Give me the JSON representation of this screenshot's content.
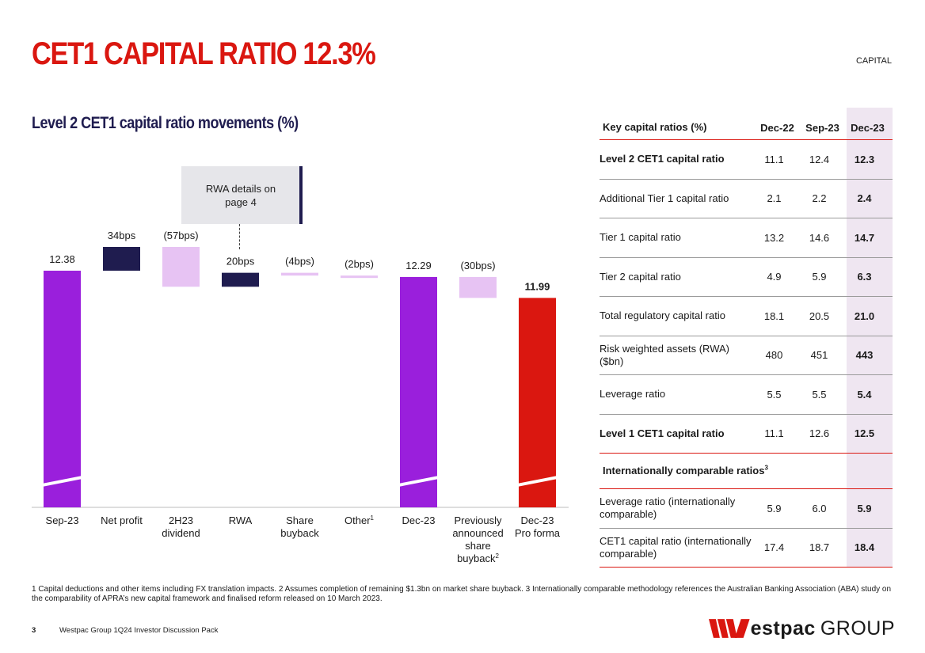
{
  "header": {
    "title": "CET1 CAPITAL RATIO 12.3%",
    "section": "CAPITAL"
  },
  "chart_section": {
    "subtitle": "Level 2 CET1 capital ratio movements (%)"
  },
  "callout": {
    "text": "RWA details on page 4"
  },
  "chart_data": {
    "type": "waterfall",
    "title": "Level 2 CET1 capital ratio movements (%)",
    "colors": {
      "total": "#9a1fdc",
      "increase": "#1f1c4f",
      "decrease": "#e7c3f3",
      "proforma": "#da1710"
    },
    "items": [
      {
        "label": "Sep-23",
        "sup": "",
        "kind": "total",
        "start": 0,
        "end": 12.38,
        "data_label": "12.38",
        "label_bold": false
      },
      {
        "label": "Net profit",
        "sup": "",
        "kind": "increase",
        "start": 12.38,
        "end": 12.72,
        "data_label": "34bps",
        "label_bold": false
      },
      {
        "label": "2H23 dividend",
        "sup": "",
        "kind": "decrease",
        "start": 12.72,
        "end": 12.15,
        "data_label": "(57bps)",
        "label_bold": false
      },
      {
        "label": "RWA",
        "sup": "",
        "kind": "increase",
        "start": 12.15,
        "end": 12.35,
        "data_label": "20bps",
        "label_bold": false
      },
      {
        "label": "Share buyback",
        "sup": "",
        "kind": "decrease",
        "start": 12.35,
        "end": 12.31,
        "data_label": "(4bps)",
        "label_bold": false
      },
      {
        "label": "Other",
        "sup": "1",
        "kind": "decrease",
        "start": 12.31,
        "end": 12.29,
        "data_label": "(2bps)",
        "label_bold": false
      },
      {
        "label": "Dec-23",
        "sup": "",
        "kind": "total",
        "start": 0,
        "end": 12.29,
        "data_label": "12.29",
        "label_bold": false
      },
      {
        "label": "Previously announced share buyback",
        "sup": "2",
        "kind": "decrease",
        "start": 12.29,
        "end": 11.99,
        "data_label": "(30bps)",
        "label_bold": false
      },
      {
        "label": "Dec-23 Pro forma",
        "sup": "",
        "kind": "proforma",
        "start": 0,
        "end": 11.99,
        "data_label": "11.99",
        "label_bold": true
      }
    ],
    "x_tick_lines": [
      [
        "Sep-23"
      ],
      [
        "Net profit"
      ],
      [
        "2H23",
        "dividend"
      ],
      [
        "RWA"
      ],
      [
        "Share",
        "buyback"
      ],
      [
        "Other"
      ],
      [
        "Dec-23"
      ],
      [
        "Previously",
        "announced",
        "share",
        "buyback"
      ],
      [
        "Dec-23",
        "Pro forma"
      ]
    ],
    "axis_break": true
  },
  "table": {
    "headers": [
      "Key capital ratios (%)",
      "Dec-22",
      "Sep-23",
      "Dec-23"
    ],
    "rows": [
      {
        "label": "Level 2 CET1 capital ratio",
        "dec22": "11.1",
        "sep23": "12.4",
        "dec23": "12.3",
        "bold": true
      },
      {
        "label": "Additional Tier 1 capital ratio",
        "dec22": "2.1",
        "sep23": "2.2",
        "dec23": "2.4",
        "bold": false
      },
      {
        "label": "Tier 1 capital ratio",
        "dec22": "13.2",
        "sep23": "14.6",
        "dec23": "14.7",
        "bold": false
      },
      {
        "label": "Tier 2 capital ratio",
        "dec22": "4.9",
        "sep23": "5.9",
        "dec23": "6.3",
        "bold": false
      },
      {
        "label": "Total regulatory capital ratio",
        "dec22": "18.1",
        "sep23": "20.5",
        "dec23": "21.0",
        "bold": false
      },
      {
        "label": "Risk weighted assets (RWA) ($bn)",
        "dec22": "480",
        "sep23": "451",
        "dec23": "443",
        "bold": false
      },
      {
        "label": "Leverage ratio",
        "dec22": "5.5",
        "sep23": "5.5",
        "dec23": "5.4",
        "bold": false
      },
      {
        "label": "Level 1 CET1 capital ratio",
        "dec22": "11.1",
        "sep23": "12.6",
        "dec23": "12.5",
        "bold": true
      }
    ],
    "intl_header": "Internationally comparable ratios",
    "intl_header_sup": "3",
    "intl_rows": [
      {
        "label": "Leverage ratio (internationally comparable)",
        "dec22": "5.9",
        "sep23": "6.0",
        "dec23": "5.9"
      },
      {
        "label": "CET1 capital ratio (internationally comparable)",
        "dec22": "17.4",
        "sep23": "18.7",
        "dec23": "18.4"
      }
    ]
  },
  "footnote": "1 Capital deductions and other items including FX translation impacts. 2 Assumes completion of remaining $1.3bn on market share buyback. 3 Internationally comparable methodology references the Australian Banking Association (ABA) study on the comparability of APRA’s new capital framework and finalised reform released on 10 March 2023.",
  "footer": {
    "page": "3",
    "pack": "Westpac Group 1Q24 Investor Discussion Pack",
    "logo_text": "estpac",
    "logo_group": "GROUP"
  }
}
